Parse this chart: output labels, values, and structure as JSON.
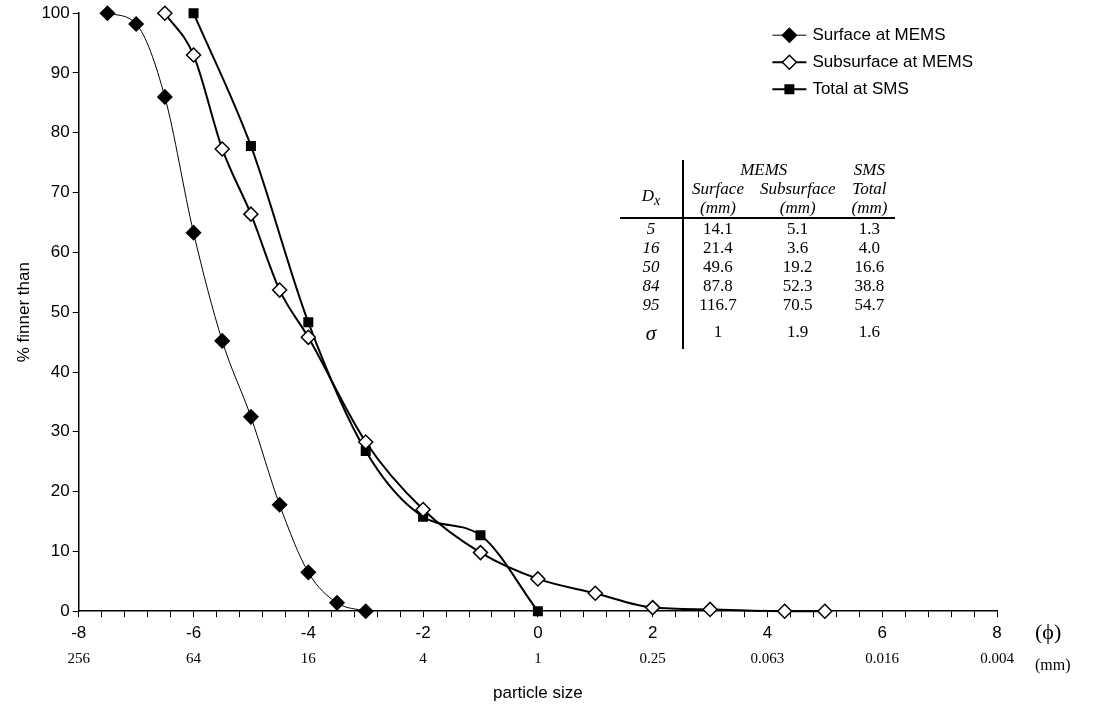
{
  "chart_data": [
    {
      "type": "line",
      "xlabel": "particle size",
      "ylabel": "% finner than",
      "xlim": [
        -8,
        8
      ],
      "ylim": [
        0,
        100
      ],
      "xticks": [
        -8,
        {
          "value": -7.6,
          "label": null
        },
        {
          "value": -7.2,
          "label": null
        },
        {
          "value": -6.8,
          "label": null
        },
        {
          "value": -6.4,
          "label": null
        },
        -6,
        {
          "value": -5.6,
          "label": null
        },
        {
          "value": -5.2,
          "label": null
        },
        {
          "value": -4.8,
          "label": null
        },
        {
          "value": -4.4,
          "label": null
        },
        -4,
        {
          "value": -3.6,
          "label": null
        },
        {
          "value": -3.2,
          "label": null
        },
        {
          "value": -2.8,
          "label": null
        },
        {
          "value": -2.4,
          "label": null
        },
        -2,
        {
          "value": -1.6,
          "label": null
        },
        {
          "value": -1.2,
          "label": null
        },
        {
          "value": -0.8,
          "label": null
        },
        {
          "value": -0.4,
          "label": null
        },
        0,
        {
          "value": 0.4,
          "label": null
        },
        {
          "value": 0.8,
          "label": null
        },
        {
          "value": 1.2,
          "label": null
        },
        {
          "value": 1.6,
          "label": null
        },
        2,
        {
          "value": 2.4,
          "label": null
        },
        {
          "value": 2.8,
          "label": null
        },
        {
          "value": 3.2,
          "label": null
        },
        {
          "value": 3.6,
          "label": null
        },
        4,
        {
          "value": 4.4,
          "label": null
        },
        {
          "value": 4.8,
          "label": null
        },
        {
          "value": 5.2,
          "label": null
        },
        {
          "value": 5.6,
          "label": null
        },
        6,
        {
          "value": 6.4,
          "label": null
        },
        {
          "value": 6.8,
          "label": null
        },
        {
          "value": 7.2,
          "label": null
        },
        {
          "value": 7.6,
          "label": null
        },
        8
      ],
      "log": "x2",
      "x2lim": [
        256,
        0.00390625
      ],
      "x2ticks": [
        256,
        64,
        16,
        4,
        1,
        0.25,
        {
          "value": 0.0625,
          "label": "0.063"
        },
        {
          "value": 0.015625,
          "label": "0.016"
        },
        {
          "value": 0.00390625,
          "label": "0.004"
        }
      ],
      "yticks": [
        0,
        10,
        20,
        30,
        40,
        50,
        60,
        70,
        80,
        90,
        100
      ],
      "grid": false,
      "legend": "top right",
      "line_style": "solid",
      "annotations": [
        "(ϕ)",
        "(mm)"
      ],
      "series": [
        {
          "name": "Surface at MEMS",
          "color": "#000000",
          "marker": "diamond",
          "x": [
            -7.5,
            -7,
            -6.5,
            -6,
            -5.5,
            -5,
            -4.5,
            -4,
            -3.5,
            -3
          ],
          "values": [
            100,
            98.2,
            86,
            63.3,
            45.2,
            32.5,
            17.8,
            6.5,
            1.4,
            0
          ]
        },
        {
          "name": "Subsurface at MEMS",
          "color": "#000000",
          "marker": "diamond",
          "x": [
            -6.5,
            -6,
            -5.5,
            -5,
            -4.5,
            -4,
            -3,
            -2,
            -1,
            0,
            1,
            2,
            3,
            4.3,
            5
          ],
          "values": [
            100,
            93,
            77.3,
            66.4,
            53.7,
            45.8,
            28.3,
            17,
            9.8,
            5.4,
            3,
            0.6,
            0.3,
            0,
            0
          ]
        },
        {
          "name": "Total at SMS",
          "color": "#000000",
          "marker": "square",
          "x": [
            -6,
            -5,
            -4,
            -3,
            -2,
            -1,
            0
          ],
          "values": [
            100,
            77.8,
            48.3,
            26.8,
            15.8,
            12.7,
            0
          ]
        }
      ]
    },
    {
      "type": "other",
      "title": "D$_{x}$",
      "annotations": [
        "MEMS",
        "SMS"
      ],
      "categories": [
        "Surface\n(mm)",
        "Subsurface\n(mm)",
        "Total\n(mm)"
      ],
      "y_categories": [
        "5",
        "16",
        "50",
        "84",
        "95",
        "σ"
      ],
      "cell_labels": [
        [
          "14.1",
          "5.1",
          "1.3"
        ],
        [
          "21.4",
          "3.6",
          "4.0"
        ],
        [
          "49.6",
          "19.2",
          "16.6"
        ],
        [
          "87.8",
          "52.3",
          "38.8"
        ],
        [
          "116.7",
          "70.5",
          "54.7"
        ],
        [
          "1",
          "1.9",
          "1.6"
        ]
      ]
    }
  ]
}
